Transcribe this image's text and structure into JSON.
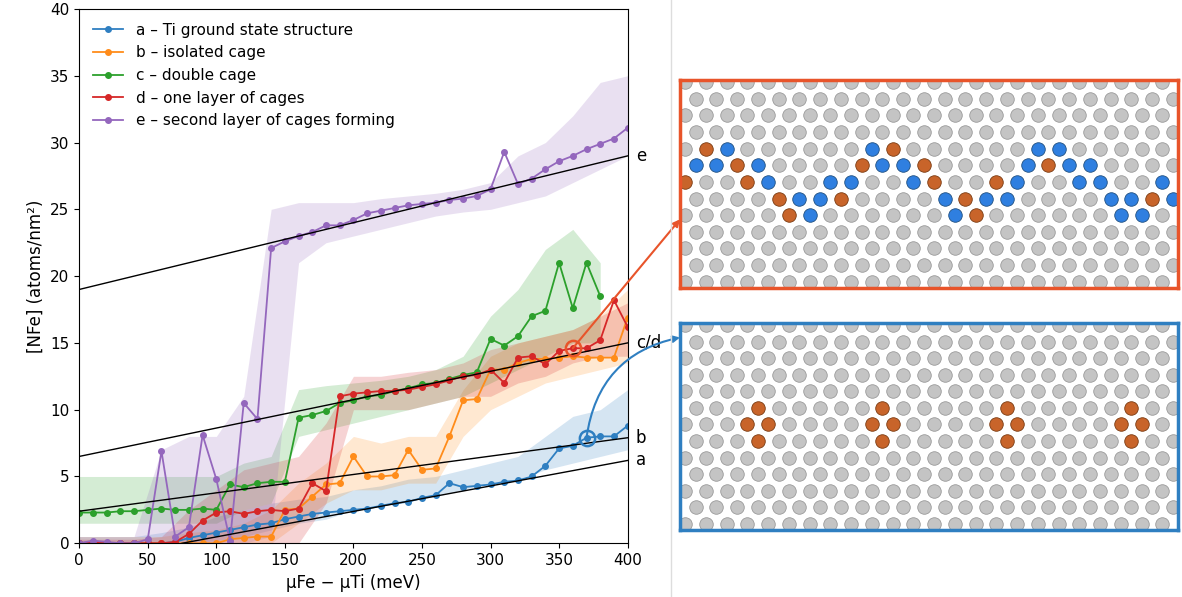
{
  "chart_data": {
    "type": "line",
    "xlabel": "μFe − μTi (meV)",
    "ylabel": "[NFe] (atoms/nm²)",
    "xlim": [
      0,
      400
    ],
    "ylim": [
      0,
      40
    ],
    "xticks": [
      0,
      50,
      100,
      150,
      200,
      250,
      300,
      350,
      400
    ],
    "yticks": [
      0,
      5,
      10,
      15,
      20,
      25,
      30,
      35,
      40
    ],
    "legend": "upper left",
    "marker": "o",
    "series": [
      {
        "name": "a – Ti ground state structure",
        "color": "#2f7fc1",
        "x": [
          0,
          10,
          20,
          30,
          40,
          50,
          60,
          70,
          80,
          90,
          100,
          110,
          120,
          130,
          140,
          150,
          160,
          170,
          180,
          190,
          200,
          210,
          220,
          230,
          240,
          250,
          260,
          270,
          280,
          290,
          300,
          310,
          320,
          330,
          340,
          350,
          360,
          370,
          380,
          390,
          400
        ],
        "values": [
          0,
          0,
          0,
          0,
          0,
          0,
          0,
          0.1,
          0.4,
          0.6,
          0.8,
          1.0,
          1.2,
          1.4,
          1.5,
          1.8,
          2.0,
          2.2,
          2.3,
          2.4,
          2.5,
          2.6,
          2.8,
          3.0,
          3.1,
          3.4,
          3.6,
          4.5,
          4.2,
          4.3,
          4.4,
          4.6,
          4.7,
          5.0,
          5.8,
          7.1,
          7.3,
          7.9,
          8.0,
          8.0,
          8.8
        ],
        "band": {
          "x": [
            0,
            20,
            40,
            60,
            80,
            100,
            120,
            140,
            160,
            180,
            200,
            220,
            240,
            260,
            280,
            300,
            320,
            340,
            360,
            380,
            400
          ],
          "lower": [
            0,
            0,
            0,
            0,
            0,
            0.2,
            0.5,
            1.0,
            1.5,
            1.8,
            2.5,
            2.8,
            3.2,
            3.5,
            4.0,
            4.5,
            4.8,
            5.5,
            6.0,
            6.5,
            7.0
          ],
          "upper": [
            0.5,
            0.5,
            0.5,
            0.8,
            1.2,
            2.0,
            2.5,
            3.0,
            3.3,
            3.5,
            4.0,
            4.3,
            4.8,
            5.0,
            5.5,
            6.0,
            6.5,
            8.0,
            9.5,
            10.0,
            11.5
          ]
        },
        "highlight": {
          "x": 370,
          "y": 7.9
        }
      },
      {
        "name": "b – isolated cage",
        "color": "#ff8c1a",
        "x": [
          0,
          10,
          20,
          30,
          40,
          50,
          60,
          70,
          80,
          90,
          100,
          110,
          120,
          130,
          140,
          150,
          160,
          170,
          180,
          190,
          200,
          210,
          220,
          230,
          240,
          250,
          260,
          270,
          280,
          290,
          300,
          310,
          320,
          330,
          340,
          350,
          360,
          370,
          380,
          390,
          400
        ],
        "values": [
          0,
          0,
          0,
          0,
          0,
          0,
          0,
          0,
          0,
          0,
          0,
          0.3,
          0.4,
          0.5,
          0.5,
          2.5,
          2.6,
          3.5,
          4.4,
          4.5,
          6.5,
          5.0,
          5.0,
          5.1,
          7.0,
          5.5,
          5.6,
          8.0,
          10.7,
          10.8,
          13.0,
          13.0,
          13.5,
          13.8,
          13.8,
          13.9,
          14.0,
          13.9,
          13.9,
          13.9,
          16.9
        ],
        "band": {
          "x": [
            0,
            20,
            40,
            60,
            80,
            100,
            120,
            140,
            160,
            180,
            200,
            220,
            240,
            260,
            280,
            300,
            320,
            340,
            360,
            380,
            400
          ],
          "lower": [
            0,
            0,
            0,
            0,
            0,
            0,
            0,
            0,
            1.5,
            3.0,
            4.0,
            4.0,
            4.5,
            4.5,
            8.0,
            10.0,
            11.0,
            12.0,
            12.5,
            13.0,
            13.5
          ],
          "upper": [
            0.5,
            0.5,
            0.5,
            0.5,
            0.8,
            1.0,
            1.5,
            2.5,
            4.5,
            6.0,
            8.0,
            7.5,
            8.0,
            8.0,
            11.5,
            14.0,
            15.0,
            15.5,
            16.0,
            17.0,
            19.0
          ]
        }
      },
      {
        "name": "c – double cage",
        "color": "#2ca02c",
        "x": [
          0,
          10,
          20,
          30,
          40,
          50,
          60,
          70,
          80,
          90,
          100,
          110,
          120,
          130,
          140,
          150,
          160,
          170,
          180,
          190,
          200,
          210,
          220,
          230,
          240,
          250,
          260,
          270,
          280,
          290,
          300,
          310,
          320,
          330,
          340,
          350,
          360,
          370,
          380
        ],
        "values": [
          2.3,
          2.3,
          2.3,
          2.4,
          2.4,
          2.5,
          2.6,
          2.5,
          2.5,
          2.6,
          2.5,
          4.4,
          4.2,
          4.5,
          4.6,
          4.6,
          9.4,
          9.6,
          9.9,
          10.5,
          10.7,
          11.0,
          11.1,
          11.4,
          11.6,
          11.9,
          12.0,
          12.3,
          12.6,
          12.8,
          15.3,
          14.8,
          15.5,
          17.0,
          17.4,
          21.0,
          17.6,
          21.0,
          18.5
        ],
        "band": {
          "x": [
            0,
            20,
            40,
            60,
            80,
            100,
            120,
            140,
            160,
            180,
            200,
            220,
            240,
            260,
            280,
            300,
            320,
            340,
            360,
            380
          ],
          "lower": [
            1.5,
            1.5,
            1.5,
            1.5,
            1.5,
            1.5,
            2.5,
            3.0,
            8.0,
            8.5,
            9.0,
            9.5,
            10.0,
            10.5,
            11.0,
            12.0,
            13.0,
            14.0,
            15.0,
            15.0
          ],
          "upper": [
            5.0,
            5.0,
            5.0,
            5.0,
            5.0,
            5.0,
            6.0,
            6.5,
            11.5,
            11.8,
            12.0,
            12.2,
            12.5,
            13.0,
            14.0,
            17.0,
            19.0,
            22.0,
            23.5,
            21.0
          ]
        }
      },
      {
        "name": "d – one layer of cages",
        "color": "#d62728",
        "x": [
          0,
          10,
          20,
          30,
          40,
          50,
          60,
          70,
          80,
          90,
          100,
          110,
          120,
          130,
          140,
          150,
          160,
          170,
          180,
          190,
          200,
          210,
          220,
          230,
          240,
          250,
          260,
          270,
          280,
          290,
          300,
          310,
          320,
          330,
          340,
          350,
          360,
          370,
          380,
          390,
          400
        ],
        "values": [
          0,
          0.1,
          0,
          0,
          0,
          0,
          0,
          0.1,
          0.7,
          1.7,
          2.3,
          2.4,
          2.2,
          2.4,
          2.5,
          2.4,
          2.6,
          4.5,
          3.9,
          11.0,
          11.2,
          11.3,
          11.4,
          11.4,
          11.5,
          11.7,
          11.9,
          12.2,
          12.5,
          12.6,
          13.0,
          12.0,
          13.9,
          14.0,
          13.4,
          14.4,
          14.6,
          14.6,
          15.2,
          18.2,
          16.2
        ],
        "band": {
          "x": [
            0,
            20,
            40,
            60,
            80,
            100,
            120,
            140,
            160,
            180,
            200,
            220,
            240,
            260,
            280,
            300,
            320,
            340,
            360,
            380,
            400
          ],
          "lower": [
            0,
            0,
            0,
            0,
            0,
            0,
            0,
            0,
            0,
            3.0,
            10.0,
            10.0,
            10.0,
            10.5,
            11.0,
            11.0,
            12.0,
            12.5,
            13.5,
            14.0,
            14.0
          ],
          "upper": [
            0.3,
            0.3,
            0.3,
            0.5,
            2.5,
            4.0,
            5.5,
            6.0,
            6.5,
            9.0,
            12.5,
            12.5,
            12.8,
            13.0,
            13.5,
            14.5,
            15.0,
            15.5,
            16.0,
            17.0,
            18.0
          ]
        },
        "highlight": {
          "x": 360,
          "y": 14.6
        }
      },
      {
        "name": "e – second layer of cages forming",
        "color": "#9467bd",
        "x": [
          0,
          10,
          20,
          30,
          40,
          50,
          60,
          70,
          80,
          90,
          100,
          110,
          120,
          130,
          140,
          150,
          160,
          170,
          180,
          190,
          200,
          210,
          220,
          230,
          240,
          250,
          260,
          270,
          280,
          290,
          300,
          310,
          320,
          330,
          340,
          350,
          360,
          370,
          380,
          390,
          400
        ],
        "values": [
          0,
          0.2,
          0.1,
          0,
          0,
          0.3,
          6.9,
          0.5,
          1.2,
          8.1,
          4.8,
          0.2,
          10.5,
          9.3,
          22.1,
          22.6,
          23.0,
          23.3,
          23.8,
          23.8,
          24.2,
          24.7,
          24.9,
          25.1,
          25.3,
          25.4,
          25.5,
          25.7,
          25.8,
          26.0,
          26.5,
          29.3,
          26.9,
          27.3,
          28.0,
          28.6,
          29.0,
          29.5,
          29.9,
          30.3,
          31.1
        ],
        "band": {
          "x": [
            0,
            20,
            40,
            60,
            80,
            100,
            120,
            140,
            160,
            180,
            200,
            220,
            240,
            260,
            280,
            300,
            320,
            340,
            360,
            380,
            400
          ],
          "lower": [
            0,
            0,
            0,
            0,
            0,
            0,
            0,
            0.5,
            21.0,
            22.5,
            23.0,
            23.5,
            24.0,
            24.5,
            24.8,
            25.0,
            25.5,
            26.0,
            27.0,
            28.0,
            29.0
          ],
          "upper": [
            0.5,
            0.5,
            0.5,
            7.0,
            8.0,
            8.0,
            11.0,
            25.0,
            25.5,
            25.5,
            25.5,
            25.8,
            26.0,
            26.2,
            26.5,
            27.0,
            29.0,
            30.0,
            32.0,
            34.5,
            35.0
          ]
        }
      }
    ],
    "fits": [
      {
        "label": "a",
        "x": [
          75,
          400
        ],
        "values": [
          0,
          6.2
        ]
      },
      {
        "label": "b",
        "x": [
          0,
          400
        ],
        "values": [
          2.4,
          7.9
        ]
      },
      {
        "label": "c/d",
        "x": [
          0,
          400
        ],
        "values": [
          6.5,
          15.0
        ]
      },
      {
        "label": "e",
        "x": [
          0,
          400
        ],
        "values": [
          19.0,
          29.0
        ]
      }
    ]
  }
}
